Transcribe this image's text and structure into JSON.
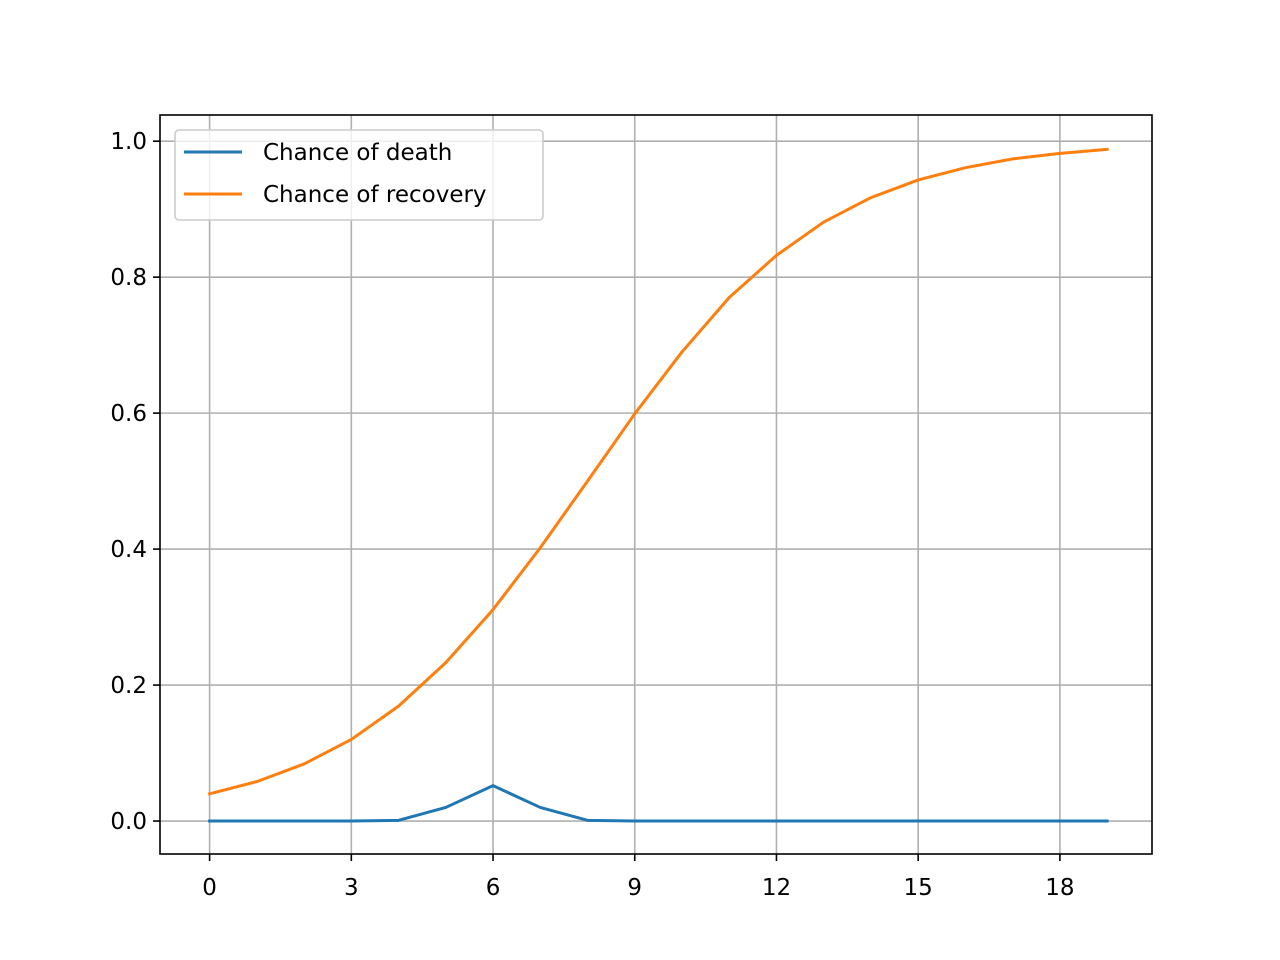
{
  "chart_data": {
    "type": "line",
    "title": "",
    "xlabel": "",
    "ylabel": "",
    "xlim": [
      -1.05,
      19.95
    ],
    "ylim": [
      -0.0485,
      1.0385
    ],
    "xticks": [
      0,
      3,
      6,
      9,
      12,
      15,
      18
    ],
    "yticks": [
      0.0,
      0.2,
      0.4,
      0.6,
      0.8,
      1.0
    ],
    "xtick_labels": [
      "0",
      "3",
      "6",
      "9",
      "12",
      "15",
      "18"
    ],
    "ytick_labels": [
      "0.0",
      "0.2",
      "0.4",
      "0.6",
      "0.8",
      "1.0"
    ],
    "grid": true,
    "legend_position": "top-left",
    "x": [
      0,
      1,
      2,
      3,
      4,
      5,
      6,
      7,
      8,
      9,
      10,
      11,
      12,
      13,
      14,
      15,
      16,
      17,
      18,
      19
    ],
    "series": [
      {
        "name": "Chance of death",
        "color": "#1f77b4",
        "values": [
          0.0,
          0.0,
          0.0,
          0.0,
          0.001,
          0.02,
          0.052,
          0.02,
          0.001,
          0.0,
          0.0,
          0.0,
          0.0,
          0.0,
          0.0,
          0.0,
          0.0,
          0.0,
          0.0,
          0.0
        ]
      },
      {
        "name": "Chance of recovery",
        "color": "#ff7f0e",
        "values": [
          0.04,
          0.058,
          0.084,
          0.12,
          0.169,
          0.233,
          0.311,
          0.402,
          0.5,
          0.599,
          0.69,
          0.77,
          0.832,
          0.881,
          0.917,
          0.943,
          0.961,
          0.974,
          0.982,
          0.988
        ]
      }
    ]
  }
}
